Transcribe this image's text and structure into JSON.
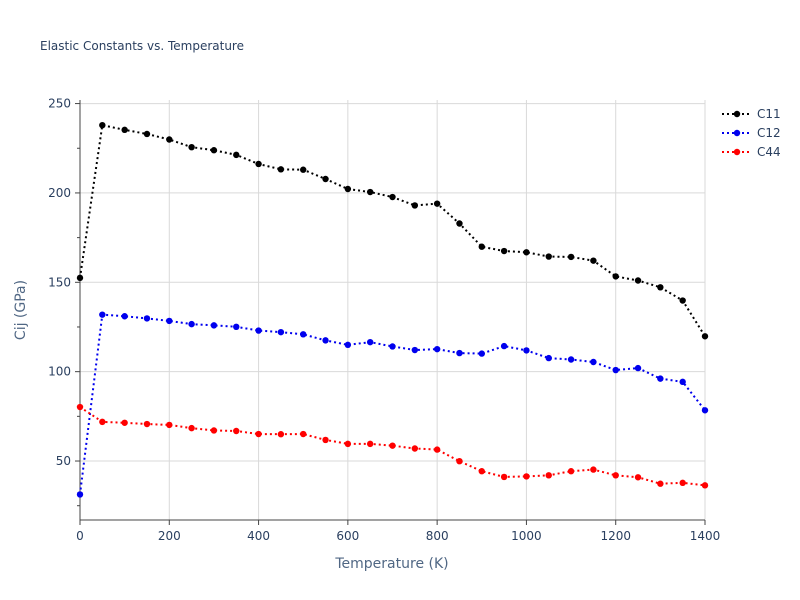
{
  "chart_data": {
    "type": "line",
    "title": "Elastic Constants vs. Temperature",
    "xlabel": "Temperature (K)",
    "ylabel": "Cij (GPa)",
    "xlim": [
      0,
      1400
    ],
    "ylim": [
      17,
      252
    ],
    "xticks": [
      0,
      200,
      400,
      600,
      800,
      1000,
      1200,
      1400
    ],
    "yticks": [
      50,
      100,
      150,
      200,
      250
    ],
    "grid": true,
    "legend_position": "top-right",
    "line_style": "dotted with markers",
    "x": [
      0,
      50,
      100,
      150,
      200,
      250,
      300,
      350,
      400,
      450,
      500,
      550,
      600,
      650,
      700,
      750,
      800,
      850,
      900,
      950,
      1000,
      1050,
      1100,
      1150,
      1200,
      1250,
      1300,
      1350,
      1400
    ],
    "series": [
      {
        "name": "C11",
        "color": "#000000",
        "values": [
          152.5,
          237.9,
          235.3,
          233.0,
          229.9,
          225.6,
          223.9,
          221.3,
          216.2,
          213.2,
          213.0,
          207.8,
          202.2,
          200.5,
          197.7,
          193.0,
          194.0,
          182.9,
          169.9,
          167.5,
          166.8,
          164.4,
          164.2,
          162.1,
          153.3,
          151.0,
          147.2,
          139.8,
          119.8
        ]
      },
      {
        "name": "C12",
        "color": "#0000ee",
        "values": [
          31.3,
          131.9,
          131.0,
          129.8,
          128.4,
          126.6,
          125.9,
          125.1,
          123.0,
          122.1,
          120.9,
          117.5,
          115.0,
          116.5,
          114.1,
          112.1,
          112.6,
          110.4,
          110.1,
          114.3,
          111.9,
          107.6,
          106.8,
          105.4,
          100.9,
          102.0,
          96.1,
          94.3,
          78.4
        ]
      },
      {
        "name": "C44",
        "color": "#ff0000",
        "values": [
          80.2,
          71.9,
          71.4,
          70.7,
          70.2,
          68.4,
          67.1,
          66.8,
          65.1,
          65.0,
          65.1,
          61.8,
          59.6,
          59.6,
          58.6,
          57.0,
          56.4,
          49.9,
          44.3,
          41.1,
          41.4,
          42.0,
          44.3,
          45.2,
          42.0,
          40.9,
          37.3,
          37.8,
          36.4
        ]
      }
    ]
  }
}
